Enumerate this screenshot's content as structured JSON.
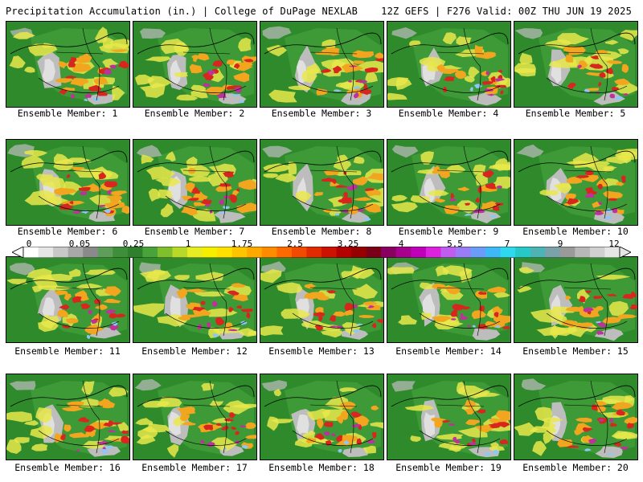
{
  "header": {
    "title_left": "Precipitation Accumulation (in.) | College of DuPage NEXLAB",
    "title_right": "12Z GEFS | F276 Valid: 00Z THU JUN 19 2025"
  },
  "panels": [
    {
      "label": "Ensemble Member: 1"
    },
    {
      "label": "Ensemble Member: 2"
    },
    {
      "label": "Ensemble Member: 3"
    },
    {
      "label": "Ensemble Member: 4"
    },
    {
      "label": "Ensemble Member: 5"
    },
    {
      "label": "Ensemble Member: 6"
    },
    {
      "label": "Ensemble Member: 7"
    },
    {
      "label": "Ensemble Member: 8"
    },
    {
      "label": "Ensemble Member: 9"
    },
    {
      "label": "Ensemble Member: 10"
    },
    {
      "label": "Ensemble Member: 11"
    },
    {
      "label": "Ensemble Member: 12"
    },
    {
      "label": "Ensemble Member: 13"
    },
    {
      "label": "Ensemble Member: 14"
    },
    {
      "label": "Ensemble Member: 15"
    },
    {
      "label": "Ensemble Member: 16"
    },
    {
      "label": "Ensemble Member: 17"
    },
    {
      "label": "Ensemble Member: 18"
    },
    {
      "label": "Ensemble Member: 19"
    },
    {
      "label": "Ensemble Member: 20"
    }
  ],
  "colorbar": {
    "ticks": [
      "0",
      "0.05",
      "0.25",
      "1",
      "1.75",
      "2.5",
      "3.25",
      "4",
      "5.5",
      "7",
      "9",
      "12"
    ],
    "colors": [
      "#ffffff",
      "#e6e6e6",
      "#c8c8c8",
      "#a8a8a8",
      "#8a8a8a",
      "#5f9e5a",
      "#3f8f3a",
      "#2f7f2c",
      "#4aa33a",
      "#7fbf2e",
      "#b8d82a",
      "#e8ec22",
      "#f6f000",
      "#ffe000",
      "#ffc400",
      "#ffa800",
      "#ff8c00",
      "#ff6a00",
      "#f24a00",
      "#e02a00",
      "#cc1200",
      "#b40000",
      "#960000",
      "#7a0018",
      "#8a0060",
      "#a6008c",
      "#c000b8",
      "#dd22dd",
      "#c05cf0",
      "#9a7cf6",
      "#6a9cf8",
      "#3fb8f6",
      "#2ed8ee",
      "#29c8c8",
      "#4cb4b4",
      "#7aa2a8",
      "#9a9a9a",
      "#b8b8b8",
      "#d0d0d0",
      "#e6e6e6"
    ]
  },
  "map": {
    "ocean_green": "#2f8a2c",
    "land_green": "#3d9a36",
    "dry_gray": "#bdbdbd",
    "light_gray": "#e0e0e0",
    "yellow": "#e8e84a",
    "orange": "#f2a51e",
    "red": "#d8261e",
    "magenta": "#c0309c",
    "purple": "#9a7cf6",
    "lightblue": "#8ec7f5"
  }
}
